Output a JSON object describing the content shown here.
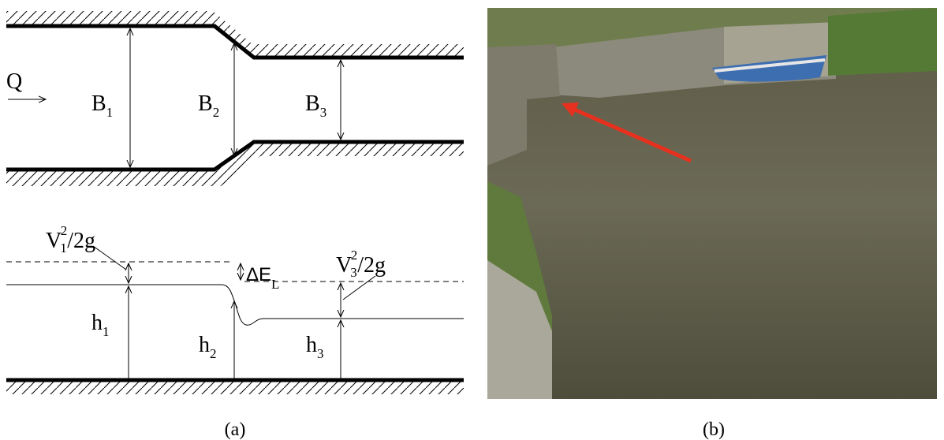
{
  "diagram_a": {
    "plan_view": {
      "flow": "Q",
      "widths": [
        {
          "symbol": "B",
          "subscript": "1"
        },
        {
          "symbol": "B",
          "subscript": "2"
        },
        {
          "symbol": "B",
          "subscript": "3"
        }
      ]
    },
    "profile": {
      "velocity_heads": [
        {
          "symbol": "V",
          "subscript": "1",
          "superscript": "2",
          "rest": "/2g"
        },
        {
          "symbol": "V",
          "subscript": "3",
          "superscript": "2",
          "rest": "/2g"
        }
      ],
      "head_loss": {
        "symbol": "ΔE",
        "subscript": "L"
      },
      "depths": [
        {
          "symbol": "h",
          "subscript": "1"
        },
        {
          "symbol": "h",
          "subscript": "2"
        },
        {
          "symbol": "h",
          "subscript": "3"
        }
      ]
    },
    "caption": "(a)"
  },
  "photo_b": {
    "caption": "(b)"
  }
}
